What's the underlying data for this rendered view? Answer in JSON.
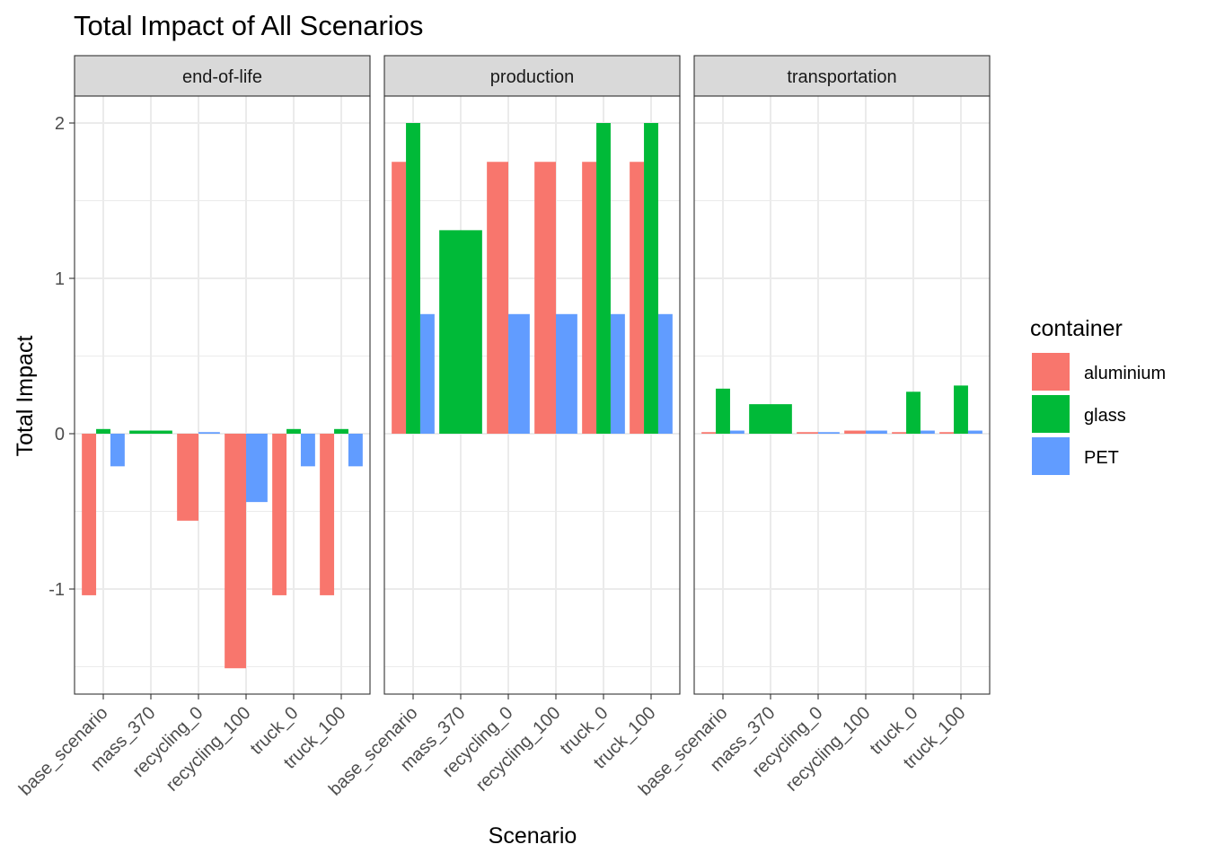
{
  "chart_data": {
    "type": "bar",
    "title": "Total Impact of All Scenarios",
    "xlabel": "Scenario",
    "ylabel": "Total Impact",
    "ylim": [
      -1.67,
      2.16
    ],
    "yticks": [
      -1,
      0,
      1,
      2
    ],
    "grid": true,
    "legend_position": "right",
    "legend_title": "container",
    "categories": [
      "base_scenario",
      "mass_370",
      "recycling_0",
      "recycling_100",
      "truck_0",
      "truck_100"
    ],
    "series_styles": [
      {
        "name": "aluminium",
        "color": "#F8766D"
      },
      {
        "name": "glass",
        "color": "#00BA38"
      },
      {
        "name": "PET",
        "color": "#619CFF"
      }
    ],
    "panels": [
      {
        "label": "end-of-life",
        "groups": [
          [
            {
              "series": "aluminium",
              "value": -1.04
            },
            {
              "series": "glass",
              "value": 0.03
            },
            {
              "series": "PET",
              "value": -0.21
            }
          ],
          [
            {
              "series": "glass",
              "value": 0.02
            }
          ],
          [
            {
              "series": "aluminium",
              "value": -0.56
            },
            {
              "series": "PET",
              "value": 0.01
            }
          ],
          [
            {
              "series": "aluminium",
              "value": -1.51
            },
            {
              "series": "PET",
              "value": -0.44
            }
          ],
          [
            {
              "series": "aluminium",
              "value": -1.04
            },
            {
              "series": "glass",
              "value": 0.03
            },
            {
              "series": "PET",
              "value": -0.21
            }
          ],
          [
            {
              "series": "aluminium",
              "value": -1.04
            },
            {
              "series": "glass",
              "value": 0.03
            },
            {
              "series": "PET",
              "value": -0.21
            }
          ]
        ]
      },
      {
        "label": "production",
        "groups": [
          [
            {
              "series": "aluminium",
              "value": 1.75
            },
            {
              "series": "glass",
              "value": 2.0
            },
            {
              "series": "PET",
              "value": 0.77
            }
          ],
          [
            {
              "series": "glass",
              "value": 1.31
            }
          ],
          [
            {
              "series": "aluminium",
              "value": 1.75
            },
            {
              "series": "PET",
              "value": 0.77
            }
          ],
          [
            {
              "series": "aluminium",
              "value": 1.75
            },
            {
              "series": "PET",
              "value": 0.77
            }
          ],
          [
            {
              "series": "aluminium",
              "value": 1.75
            },
            {
              "series": "glass",
              "value": 2.0
            },
            {
              "series": "PET",
              "value": 0.77
            }
          ],
          [
            {
              "series": "aluminium",
              "value": 1.75
            },
            {
              "series": "glass",
              "value": 2.0
            },
            {
              "series": "PET",
              "value": 0.77
            }
          ]
        ]
      },
      {
        "label": "transportation",
        "groups": [
          [
            {
              "series": "aluminium",
              "value": 0.01
            },
            {
              "series": "glass",
              "value": 0.29
            },
            {
              "series": "PET",
              "value": 0.02
            }
          ],
          [
            {
              "series": "glass",
              "value": 0.19
            }
          ],
          [
            {
              "series": "aluminium",
              "value": 0.01
            },
            {
              "series": "PET",
              "value": 0.01
            }
          ],
          [
            {
              "series": "aluminium",
              "value": 0.02
            },
            {
              "series": "PET",
              "value": 0.02
            }
          ],
          [
            {
              "series": "aluminium",
              "value": 0.01
            },
            {
              "series": "glass",
              "value": 0.27
            },
            {
              "series": "PET",
              "value": 0.02
            }
          ],
          [
            {
              "series": "aluminium",
              "value": 0.01
            },
            {
              "series": "glass",
              "value": 0.31
            },
            {
              "series": "PET",
              "value": 0.02
            }
          ]
        ]
      }
    ]
  }
}
